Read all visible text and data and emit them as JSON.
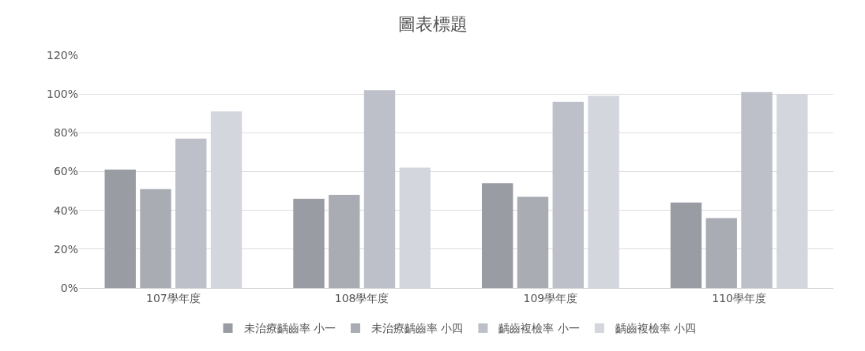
{
  "chart_data": {
    "type": "bar",
    "title": "圖表標題",
    "categories": [
      "107學年度",
      "108學年度",
      "109學年度",
      "110學年度"
    ],
    "series": [
      {
        "name": "未治療齲齒率 小一",
        "color": "#999ca3",
        "values": [
          61,
          46,
          54,
          44
        ]
      },
      {
        "name": "未治療齲齒率 小四",
        "color": "#a9acb3",
        "values": [
          51,
          48,
          47,
          36
        ]
      },
      {
        "name": "齲齒複檢率 小一",
        "color": "#bdc0c8",
        "values": [
          77,
          102,
          96,
          101
        ]
      },
      {
        "name": "齲齒複檢率 小四",
        "color": "#d4d6de",
        "values": [
          91,
          62,
          99,
          100
        ]
      }
    ],
    "ylim": [
      0,
      120
    ],
    "yticks": [
      {
        "value": 0,
        "label": "0%"
      },
      {
        "value": 20,
        "label": "20%"
      },
      {
        "value": 40,
        "label": "40%"
      },
      {
        "value": 60,
        "label": "60%"
      },
      {
        "value": 80,
        "label": "80%"
      },
      {
        "value": 100,
        "label": "100%"
      },
      {
        "value": 120,
        "label": "120%"
      }
    ],
    "grid": "y",
    "legend": "bottom"
  }
}
